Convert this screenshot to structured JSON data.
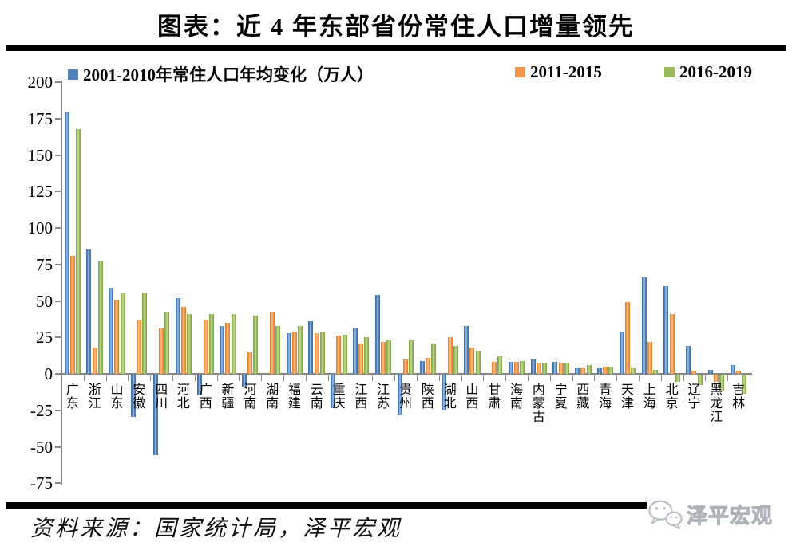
{
  "title": "图表：近 4 年东部省份常住人口增量领先",
  "chart_data": {
    "type": "bar",
    "title": "图表：近 4 年东部省份常住人口增量领先",
    "categories": [
      "广东",
      "浙江",
      "山东",
      "安徽",
      "四川",
      "河北",
      "广西",
      "新疆",
      "河南",
      "湖南",
      "福建",
      "云南",
      "重庆",
      "江西",
      "江苏",
      "贵州",
      "陕西",
      "湖北",
      "山西",
      "甘肃",
      "海南",
      "内蒙古",
      "宁夏",
      "西藏",
      "青海",
      "天津",
      "上海",
      "北京",
      "辽宁",
      "黑龙江",
      "吉林"
    ],
    "series": [
      {
        "name": "2001-2010年常住人口年均变化（万人）",
        "color": "#4f81bd",
        "color_light": "#a9c6e5",
        "color_dark": "#3d6da6",
        "values": [
          179,
          85,
          59,
          -29,
          -55,
          52,
          -14,
          33,
          -8,
          0,
          28,
          36,
          -23,
          31,
          54,
          -28,
          9,
          -24,
          33,
          0,
          8,
          10,
          8,
          4,
          4,
          29,
          66,
          60,
          19,
          3,
          6
        ]
      },
      {
        "name": "2011-2015",
        "color": "#f79646",
        "color_light": "#fbc79a",
        "color_dark": "#dd7a22",
        "values": [
          81,
          18,
          51,
          37,
          31,
          46,
          37,
          35,
          15,
          42,
          29,
          28,
          26,
          21,
          22,
          10,
          11,
          25,
          18,
          8,
          8,
          7,
          7,
          4,
          5,
          49,
          22,
          41,
          2,
          -5,
          2
        ]
      },
      {
        "name": "2016-2019",
        "color": "#9bbb59",
        "color_light": "#cadc9f",
        "color_dark": "#7da243",
        "values": [
          168,
          77,
          55,
          55,
          42,
          41,
          41,
          41,
          40,
          33,
          33,
          29,
          27,
          25,
          23,
          23,
          21,
          19,
          16,
          12,
          9,
          7,
          7,
          6,
          5,
          4,
          3,
          -5,
          -7,
          -11,
          -13
        ]
      }
    ],
    "ylim": [
      -75,
      200
    ],
    "yticks": [
      200,
      175,
      150,
      125,
      100,
      75,
      50,
      25,
      0,
      -25,
      -50,
      -75
    ],
    "grid": false,
    "legend_position": "top",
    "xlabel": "",
    "ylabel": ""
  },
  "footer": {
    "source": "资料来源：国家统计局，泽平宏观",
    "logo_text": "泽平宏观",
    "logo_icon": "wechat-icon"
  }
}
